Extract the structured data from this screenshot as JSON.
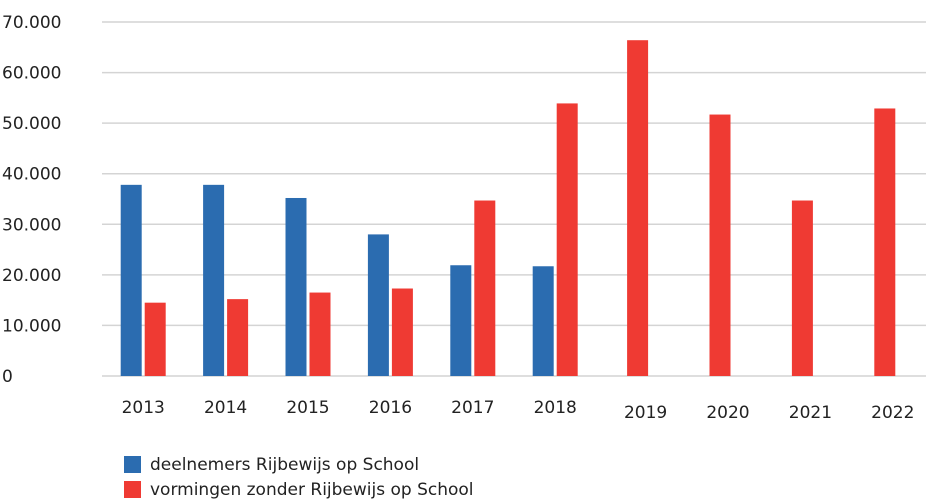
{
  "chart_data": {
    "type": "bar",
    "categories": [
      "2013",
      "2014",
      "2015",
      "2016",
      "2017",
      "2018",
      "2019",
      "2020",
      "2021",
      "2022"
    ],
    "series": [
      {
        "name": "deelnemers Rijbewijs op School",
        "color": "#2b6cb0",
        "values": [
          37800,
          37800,
          35200,
          28000,
          21900,
          21700,
          null,
          null,
          null,
          null
        ]
      },
      {
        "name": "vormingen zonder Rijbewijs op School",
        "color": "#ef3a33",
        "values": [
          14500,
          15200,
          16500,
          17300,
          34700,
          53900,
          66400,
          51700,
          34700,
          52900
        ]
      }
    ],
    "ylim": [
      0,
      70000
    ],
    "yticks": [
      0,
      10000,
      20000,
      30000,
      40000,
      50000,
      60000,
      70000
    ],
    "ytick_labels": [
      "0",
      "10.000",
      "20.000",
      "30.000",
      "40.000",
      "50.000",
      "60.000",
      "70.000"
    ],
    "grid": true,
    "legend_position": "bottom-left",
    "title": "",
    "xlabel": "",
    "ylabel": ""
  }
}
